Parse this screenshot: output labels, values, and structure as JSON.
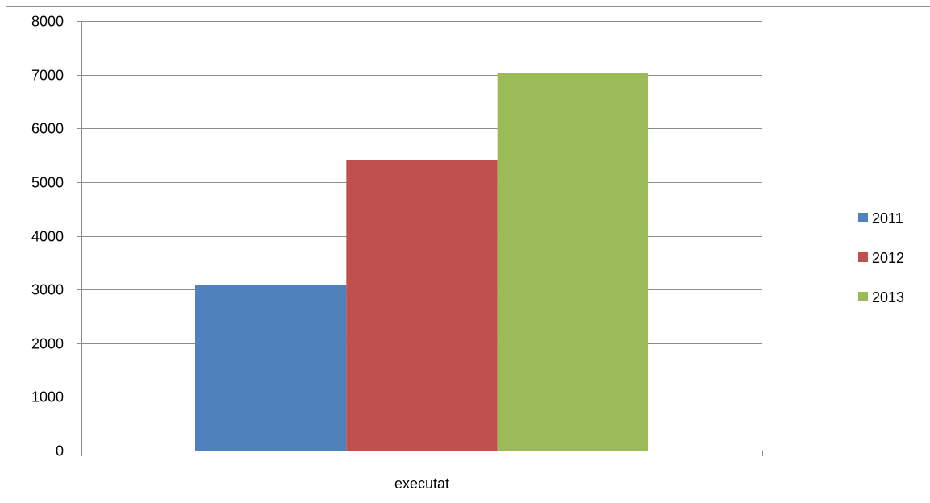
{
  "chart_data": {
    "type": "bar",
    "categories": [
      "executat"
    ],
    "series": [
      {
        "name": "2011",
        "values": [
          3085
        ],
        "color": "#4f81bd"
      },
      {
        "name": "2012",
        "values": [
          5405
        ],
        "color": "#c0504d"
      },
      {
        "name": "2013",
        "values": [
          7025
        ],
        "color": "#9bbb59"
      }
    ],
    "y_ticks": [
      "0",
      "1000",
      "2000",
      "3000",
      "4000",
      "5000",
      "6000",
      "7000",
      "8000"
    ],
    "ylim": [
      0,
      8000
    ],
    "grid": true,
    "gridline_color": "#8c8c8c",
    "legend_position": "right"
  }
}
